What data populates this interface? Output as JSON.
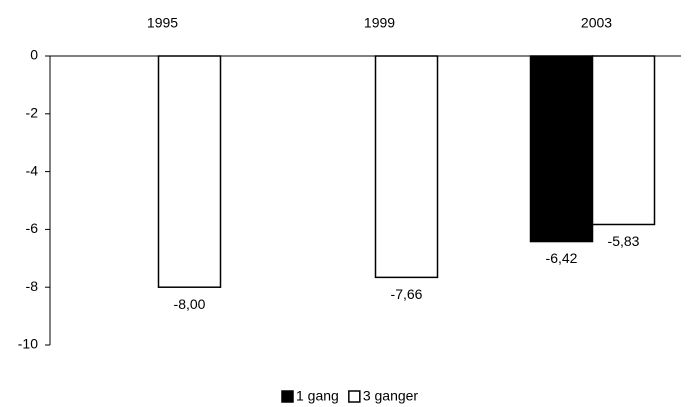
{
  "chart_data": {
    "type": "bar",
    "categories": [
      "1995",
      "1999",
      "2003"
    ],
    "series": [
      {
        "name": "1 gang",
        "color": "#000000",
        "values": [
          null,
          null,
          -6.42
        ],
        "value_labels": [
          null,
          null,
          "-6,42"
        ]
      },
      {
        "name": "3 ganger",
        "color": "#ffffff",
        "values": [
          -8.0,
          -7.66,
          -5.83
        ],
        "value_labels": [
          "-8,00",
          "-7,66",
          "-5,83"
        ]
      }
    ],
    "ylim": [
      -10,
      0
    ],
    "yticks": [
      0,
      -2,
      -4,
      -6,
      -8,
      -10
    ],
    "grid": false,
    "legend": "bottom"
  }
}
